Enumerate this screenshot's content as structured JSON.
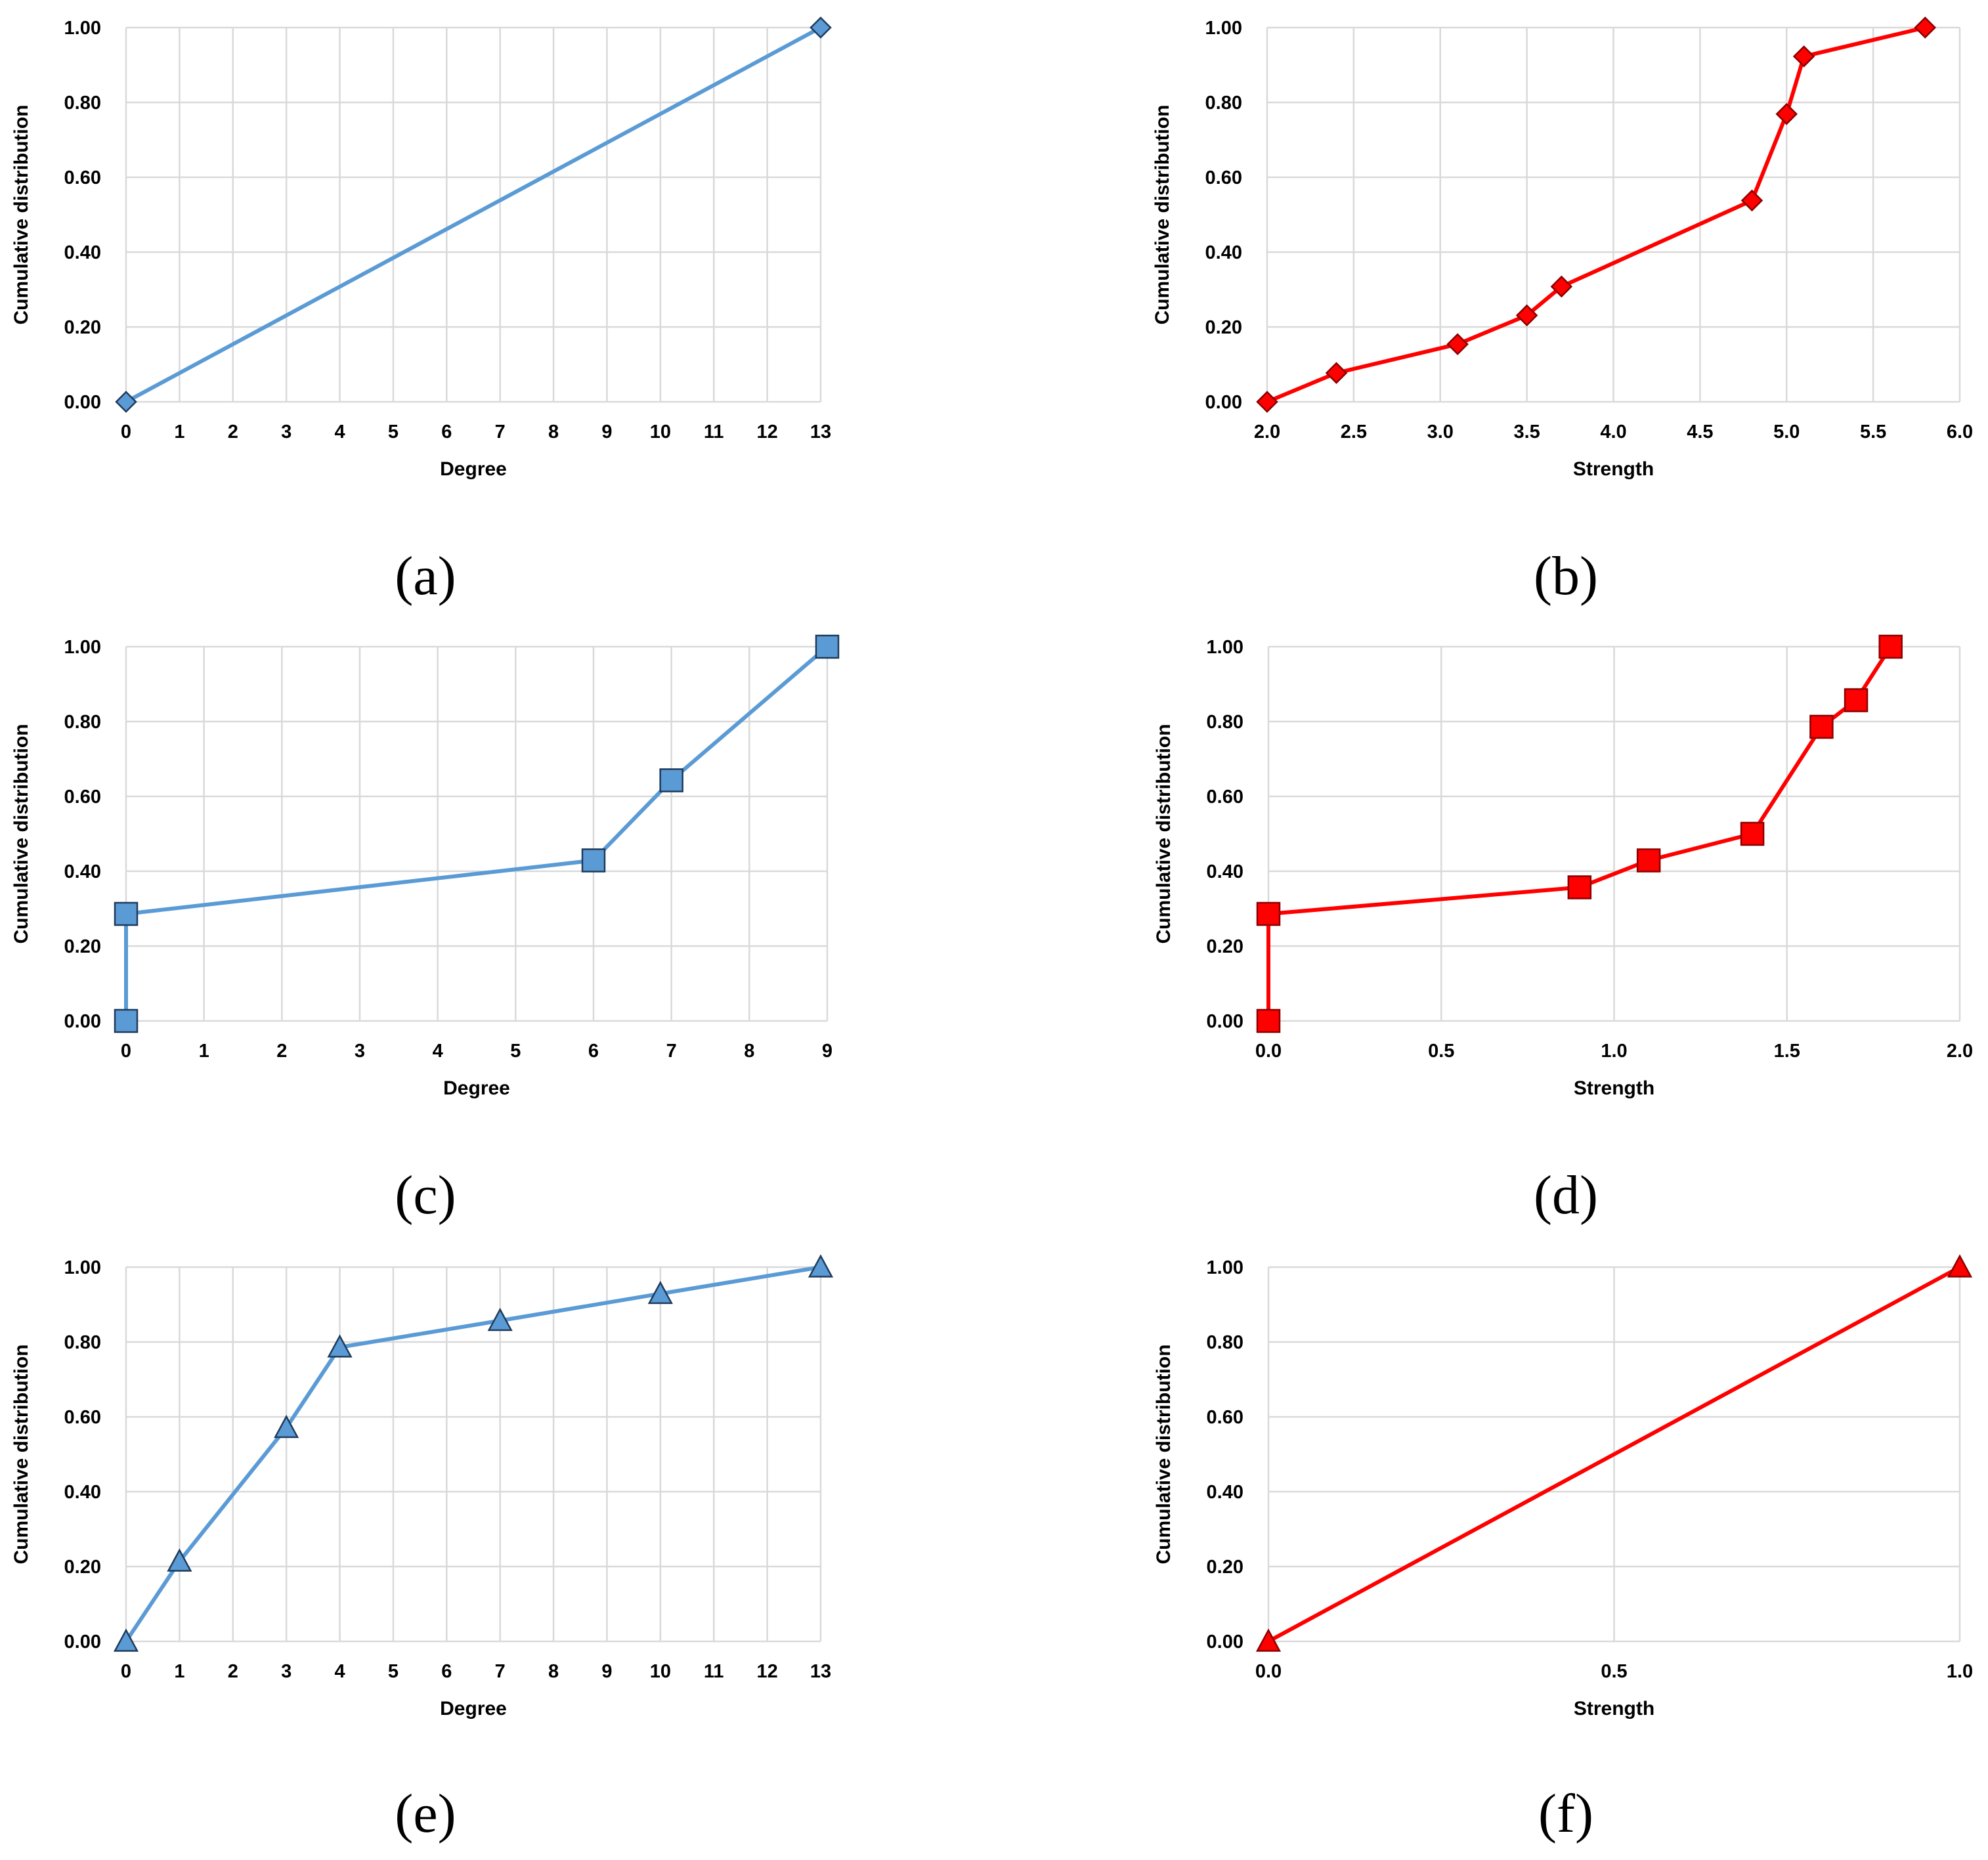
{
  "colors": {
    "blue_line": "#5b9bd5",
    "blue_marker": "#5b9bd5",
    "red_line": "#ff0000",
    "red_marker": "#ff0000",
    "marker_edge": "#1f3a5a",
    "red_edge": "#8b0000",
    "grid": "#d9d9d9"
  },
  "chart_data": [
    {
      "panel": "(a)",
      "type": "line",
      "marker": "diamond",
      "color": "blue",
      "xlabel": "Degree",
      "ylabel": "Cumulative distribution",
      "xlim": [
        0,
        13
      ],
      "xticks": [
        0,
        1,
        2,
        3,
        4,
        5,
        6,
        7,
        8,
        9,
        10,
        11,
        12,
        13
      ],
      "xtick_labels": [
        "0",
        "1",
        "2",
        "3",
        "4",
        "5",
        "6",
        "7",
        "8",
        "9",
        "10",
        "11",
        "12",
        "13"
      ],
      "ylim": [
        0,
        1
      ],
      "yticks": [
        0,
        0.2,
        0.4,
        0.6,
        0.8,
        1.0
      ],
      "ytick_labels": [
        "0.00",
        "0.20",
        "0.40",
        "0.60",
        "0.80",
        "1.00"
      ],
      "x": [
        0,
        13
      ],
      "y": [
        0.0,
        1.0
      ]
    },
    {
      "panel": "(b)",
      "type": "line",
      "marker": "diamond",
      "color": "red",
      "xlabel": "Strength",
      "ylabel": "Cumulative distribution",
      "xlim": [
        2.0,
        6.0
      ],
      "xticks": [
        2.0,
        2.5,
        3.0,
        3.5,
        4.0,
        4.5,
        5.0,
        5.5,
        6.0
      ],
      "xtick_labels": [
        "2.0",
        "2.5",
        "3.0",
        "3.5",
        "4.0",
        "4.5",
        "5.0",
        "5.5",
        "6.0"
      ],
      "ylim": [
        0,
        1
      ],
      "yticks": [
        0,
        0.2,
        0.4,
        0.6,
        0.8,
        1.0
      ],
      "ytick_labels": [
        "0.00",
        "0.20",
        "0.40",
        "0.60",
        "0.80",
        "1.00"
      ],
      "x": [
        2.0,
        2.4,
        3.1,
        3.5,
        3.7,
        4.8,
        5.0,
        5.1,
        5.8
      ],
      "y": [
        0.0,
        0.077,
        0.154,
        0.231,
        0.308,
        0.538,
        0.769,
        0.923,
        1.0
      ]
    },
    {
      "panel": "(c)",
      "type": "line",
      "marker": "square",
      "color": "blue",
      "xlabel": "Degree",
      "ylabel": "Cumulative distribution",
      "xlim": [
        0,
        9
      ],
      "xticks": [
        0,
        1,
        2,
        3,
        4,
        5,
        6,
        7,
        8,
        9
      ],
      "xtick_labels": [
        "0",
        "1",
        "2",
        "3",
        "4",
        "5",
        "6",
        "7",
        "8",
        "9"
      ],
      "ylim": [
        0,
        1
      ],
      "yticks": [
        0,
        0.2,
        0.4,
        0.6,
        0.8,
        1.0
      ],
      "ytick_labels": [
        "0.00",
        "0.20",
        "0.40",
        "0.60",
        "0.80",
        "1.00"
      ],
      "x": [
        0,
        0,
        6,
        7,
        9
      ],
      "y": [
        0.0,
        0.286,
        0.429,
        0.643,
        1.0
      ]
    },
    {
      "panel": "(d)",
      "type": "line",
      "marker": "square",
      "color": "red",
      "xlabel": "Strength",
      "ylabel": "Cumulative distribution",
      "xlim": [
        0.0,
        2.0
      ],
      "xticks": [
        0.0,
        0.5,
        1.0,
        1.5,
        2.0
      ],
      "xtick_labels": [
        "0.0",
        "0.5",
        "1.0",
        "1.5",
        "2.0"
      ],
      "ylim": [
        0,
        1
      ],
      "yticks": [
        0,
        0.2,
        0.4,
        0.6,
        0.8,
        1.0
      ],
      "ytick_labels": [
        "0.00",
        "0.20",
        "0.40",
        "0.60",
        "0.80",
        "1.00"
      ],
      "x": [
        0.0,
        0.0,
        0.9,
        1.1,
        1.4,
        1.6,
        1.7,
        1.8
      ],
      "y": [
        0.0,
        0.286,
        0.357,
        0.429,
        0.5,
        0.786,
        0.857,
        1.0
      ]
    },
    {
      "panel": "(e)",
      "type": "line",
      "marker": "triangle",
      "color": "blue",
      "xlabel": "Degree",
      "ylabel": "Cumulative distribution",
      "xlim": [
        0,
        13
      ],
      "xticks": [
        0,
        1,
        2,
        3,
        4,
        5,
        6,
        7,
        8,
        9,
        10,
        11,
        12,
        13
      ],
      "xtick_labels": [
        "0",
        "1",
        "2",
        "3",
        "4",
        "5",
        "6",
        "7",
        "8",
        "9",
        "10",
        "11",
        "12",
        "13"
      ],
      "ylim": [
        0,
        1
      ],
      "yticks": [
        0,
        0.2,
        0.4,
        0.6,
        0.8,
        1.0
      ],
      "ytick_labels": [
        "0.00",
        "0.20",
        "0.40",
        "0.60",
        "0.80",
        "1.00"
      ],
      "x": [
        0,
        1,
        3,
        4,
        7,
        10,
        13
      ],
      "y": [
        0.0,
        0.214,
        0.571,
        0.786,
        0.857,
        0.929,
        1.0
      ]
    },
    {
      "panel": "(f)",
      "type": "line",
      "marker": "triangle",
      "color": "red",
      "xlabel": "Strength",
      "ylabel": "Cumulative distribution",
      "xlim": [
        0.0,
        1.0
      ],
      "xticks": [
        0.0,
        0.5,
        1.0
      ],
      "xtick_labels": [
        "0.0",
        "0.5",
        "1.0"
      ],
      "ylim": [
        0,
        1
      ],
      "yticks": [
        0,
        0.2,
        0.4,
        0.6,
        0.8,
        1.0
      ],
      "ytick_labels": [
        "0.00",
        "0.20",
        "0.40",
        "0.60",
        "0.80",
        "1.00"
      ],
      "x": [
        0.0,
        1.0
      ],
      "y": [
        0.0,
        1.0
      ]
    }
  ]
}
